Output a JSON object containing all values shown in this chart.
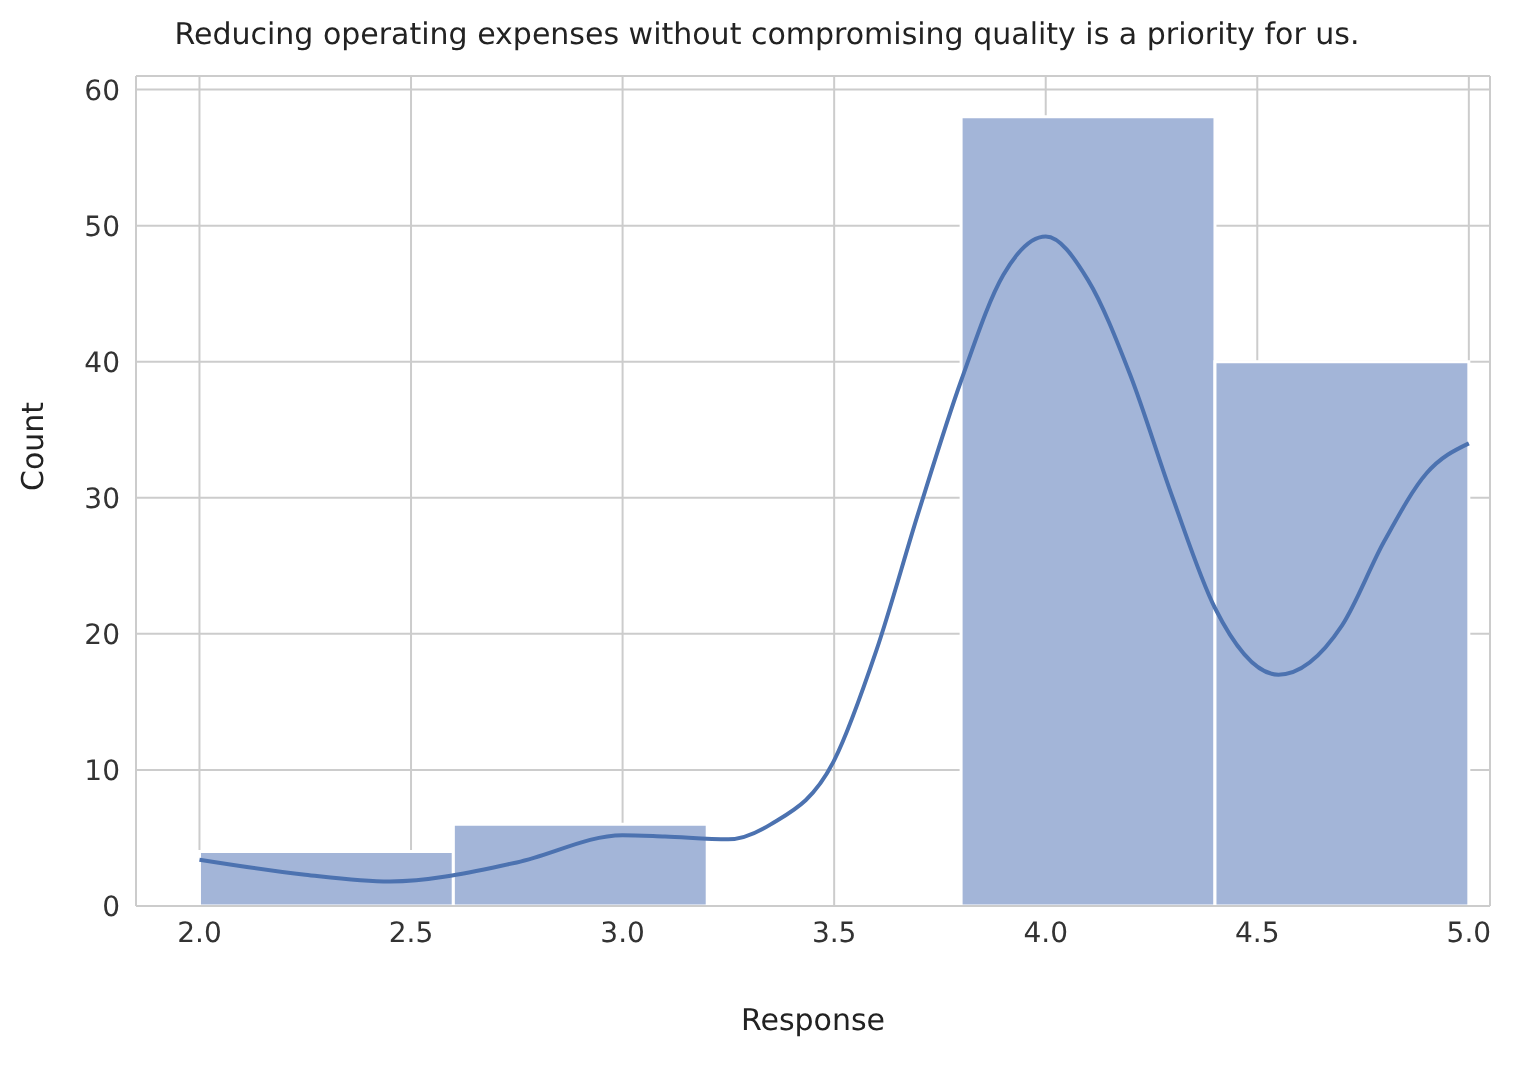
{
  "chart_data": {
    "type": "histogram",
    "title": "Reducing operating expenses without compromising quality is a priority for us.",
    "xlabel": "Response",
    "ylabel": "Count",
    "bins": [
      2.0,
      2.6,
      3.2,
      3.8,
      4.4,
      5.0
    ],
    "values": [
      4,
      6,
      0,
      58,
      40
    ],
    "color": "#a3b5d8",
    "series": [
      {
        "type": "line",
        "color": "#4c72b0",
        "x": [
          2.0,
          2.25,
          2.45,
          2.75,
          3.0,
          3.1,
          3.25,
          3.35,
          3.5,
          3.6,
          3.7,
          3.8,
          3.9,
          4.0,
          4.1,
          4.2,
          4.3,
          4.4,
          4.55,
          4.7,
          4.8,
          4.9,
          5.0
        ],
        "values": [
          3.4,
          2.3,
          1.8,
          3.2,
          5.2,
          5.1,
          4.9,
          6,
          10.7,
          18.8,
          29,
          38.6,
          46.4,
          49.2,
          46,
          39,
          30,
          21.9,
          17,
          20.6,
          26.8,
          31.8,
          34
        ]
      }
    ],
    "xlim": [
      1.85,
      5.05
    ],
    "xticks": [
      {
        "value": 2.0,
        "label": "2.0"
      },
      {
        "value": 2.5,
        "label": "2.5"
      },
      {
        "value": 3.0,
        "label": "3.0"
      },
      {
        "value": 3.5,
        "label": "3.5"
      },
      {
        "value": 4.0,
        "label": "4.0"
      },
      {
        "value": 4.5,
        "label": "4.5"
      },
      {
        "value": 5.0,
        "label": "5.0"
      }
    ],
    "ylim": [
      0,
      61
    ],
    "yticks": [
      0,
      10,
      20,
      30,
      40,
      50,
      60
    ],
    "grid": true
  }
}
